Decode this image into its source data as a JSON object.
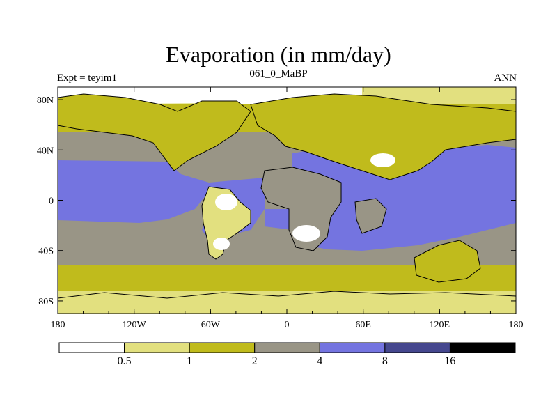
{
  "title": "Evaporation (in mm/day)",
  "left_string": "Expt = teyim1",
  "center_string": "061_0_MaBP",
  "right_string": "ANN",
  "map": {
    "projection": "cylindrical-equidistant",
    "lon_range": [
      -180,
      180
    ],
    "lat_range": [
      -90,
      90
    ],
    "x_ticks": [
      {
        "lon": -180,
        "label": "180"
      },
      {
        "lon": -120,
        "label": "120W"
      },
      {
        "lon": -60,
        "label": "60W"
      },
      {
        "lon": 0,
        "label": "0"
      },
      {
        "lon": 60,
        "label": "60E"
      },
      {
        "lon": 120,
        "label": "120E"
      },
      {
        "lon": 180,
        "label": "180"
      }
    ],
    "y_ticks": [
      {
        "lat": 80,
        "label": "80N"
      },
      {
        "lat": 40,
        "label": "40N"
      },
      {
        "lat": 0,
        "label": "0"
      },
      {
        "lat": -40,
        "label": "40S"
      },
      {
        "lat": -80,
        "label": "80S"
      }
    ]
  },
  "colorbar": {
    "colors": [
      "#ffffff",
      "#e2e07f",
      "#c0bb1c",
      "#999586",
      "#7474e0",
      "#45478e",
      "#000000"
    ],
    "levels": [
      "0.5",
      "1",
      "2",
      "4",
      "8",
      "16"
    ]
  }
}
